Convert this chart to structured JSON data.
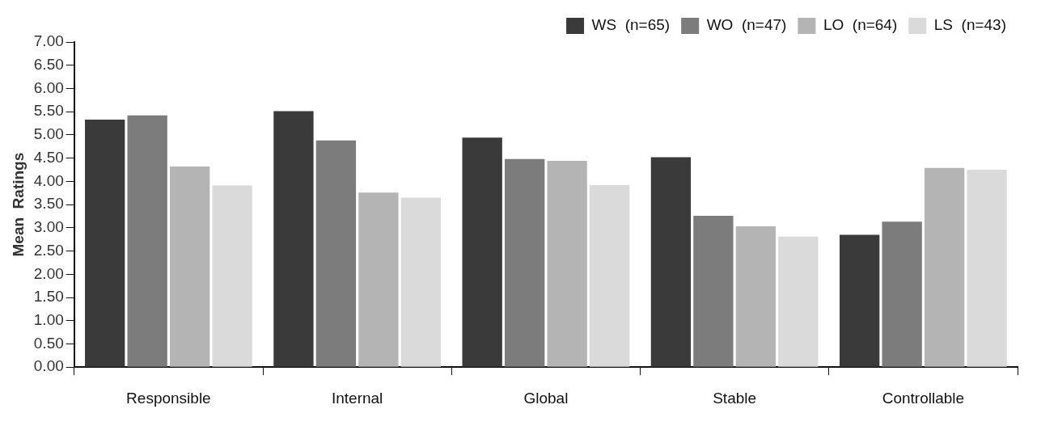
{
  "chart_data": {
    "type": "bar",
    "ylabel": "Mean  Ratings",
    "categories": [
      "Responsible",
      "Internal",
      "Global",
      "Stable",
      "Controllable"
    ],
    "series": [
      {
        "name": "WS  (n=65)",
        "color": "#3a3a3a",
        "values": [
          5.33,
          5.51,
          4.94,
          4.52,
          2.85
        ]
      },
      {
        "name": "WO  (n=47)",
        "color": "#7c7c7c",
        "values": [
          5.42,
          4.88,
          4.48,
          3.26,
          3.13
        ]
      },
      {
        "name": "LO  (n=64)",
        "color": "#b4b4b4",
        "values": [
          4.32,
          3.76,
          4.44,
          3.03,
          4.29
        ]
      },
      {
        "name": "LS  (n=43)",
        "color": "#dadada",
        "values": [
          3.91,
          3.65,
          3.92,
          2.81,
          4.25
        ]
      }
    ],
    "ylim": [
      0,
      7
    ],
    "yticks": [
      {
        "value": 0,
        "label": "0.00"
      },
      {
        "value": 0.5,
        "label": "0.50"
      },
      {
        "value": 1,
        "label": "1.00"
      },
      {
        "value": 1.5,
        "label": "1.50"
      },
      {
        "value": 2,
        "label": "2.00"
      },
      {
        "value": 2.5,
        "label": "2.50"
      },
      {
        "value": 3,
        "label": "3.00"
      },
      {
        "value": 3.5,
        "label": "3.50"
      },
      {
        "value": 4,
        "label": "4.00"
      },
      {
        "value": 4.5,
        "label": "4.50"
      },
      {
        "value": 5,
        "label": "5.00"
      },
      {
        "value": 5.5,
        "label": "5.50"
      },
      {
        "value": 6,
        "label": "6.00"
      },
      {
        "value": 6.5,
        "label": "6.50"
      },
      {
        "value": 7,
        "label": "7.00"
      }
    ],
    "grid": false,
    "legend": "top right"
  }
}
